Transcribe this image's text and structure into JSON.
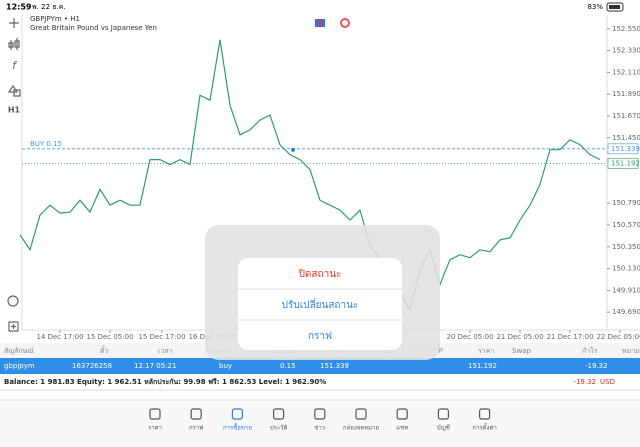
{
  "status_bar": {
    "time": "12:59",
    "date": "พ. 22 ธ.ค.",
    "battery": "83%"
  },
  "toolbar": {
    "timeframe": "H1"
  },
  "chart_data": {
    "type": "line",
    "title": "GBPJPYm • H1",
    "subtitle": "Great Britain Pound vs Japanese Yen",
    "color": "#2e9d6e",
    "values": [
      150.47,
      150.32,
      150.67,
      150.77,
      150.69,
      150.7,
      150.82,
      150.7,
      150.93,
      150.77,
      150.82,
      150.77,
      150.77,
      151.23,
      151.23,
      151.18,
      151.23,
      151.18,
      151.88,
      151.83,
      152.44,
      151.78,
      151.48,
      151.53,
      151.63,
      151.68,
      151.38,
      151.28,
      151.23,
      151.13,
      150.82,
      150.77,
      150.72,
      150.62,
      150.72,
      150.37,
      150.22,
      150.02,
      149.9,
      149.71,
      150.12,
      150.32,
      149.97,
      150.22,
      150.27,
      150.24,
      150.32,
      150.3,
      150.42,
      150.44,
      150.62,
      150.77,
      150.98,
      151.33,
      151.33,
      151.43,
      151.38,
      151.28,
      151.23
    ],
    "xlim": [
      0,
      60
    ],
    "xticks": [
      {
        "value": 4,
        "label": "14 Dec 17:00"
      },
      {
        "value": 9,
        "label": "15 Dec 05:00"
      },
      {
        "value": 14.2,
        "label": "15 Dec 17:00"
      },
      {
        "value": 19.2,
        "label": "16 Dec 05:00"
      },
      {
        "value": 45,
        "label": "20 Dec 05:00"
      },
      {
        "value": 50,
        "label": "21 Dec 05:00"
      },
      {
        "value": 55,
        "label": "21 Dec 17:00"
      },
      {
        "value": 60,
        "label": "22 Dec 05:00"
      }
    ],
    "ylim": [
      149.51,
      152.7
    ],
    "yticks": [
      {
        "value": 152.55,
        "label": "152.550"
      },
      {
        "value": 152.33,
        "label": "152.330"
      },
      {
        "value": 152.11,
        "label": "152.110"
      },
      {
        "value": 151.89,
        "label": "151.890"
      },
      {
        "value": 151.67,
        "label": "151.670"
      },
      {
        "value": 151.45,
        "label": "151.450"
      },
      {
        "value": 150.79,
        "label": "150.790"
      },
      {
        "value": 150.57,
        "label": "150.570"
      },
      {
        "value": 150.35,
        "label": "150.350"
      },
      {
        "value": 150.13,
        "label": "150.130"
      },
      {
        "value": 149.91,
        "label": "149.910"
      },
      {
        "value": 149.69,
        "label": "149.690"
      }
    ],
    "price_lines": [
      {
        "label": "BUY 0.15",
        "value": 151.339,
        "color": "#4a9ad6"
      },
      {
        "value": 151.192,
        "color": "#2e9d6e"
      }
    ]
  },
  "popup": {
    "items": [
      "ปิดสถานะ",
      "ปรับเปลี่ยนสถานะ",
      "กราฟ"
    ]
  },
  "table": {
    "columns": [
      "สัญลักษณ์",
      "ตั๋ว",
      "เวลา",
      "ประเภท",
      "Volume",
      "ราคา",
      "S/L",
      "T/P",
      "ราคา",
      "Swap",
      "กำไร",
      "หมายเหตุ"
    ],
    "rows": [
      [
        "gbpjpym",
        "163726258",
        "12.17 05:21",
        "buy",
        "0.15",
        "151.339",
        "",
        "",
        "151.192",
        "",
        "-19.32",
        ""
      ]
    ],
    "summary": "Balance: 1 981.83 Equity: 1 962.51 หลักประกัน: 99.98 ฟรี: 1 862.53 Level: 1 962.90%",
    "profit": "-19.32",
    "currency": "USD"
  },
  "tabs": [
    "ราคา",
    "กราฟ",
    "การซื้อขาย",
    "ประวัติ",
    "ข่าว",
    "กล่องจดหมาย",
    "แชท",
    "บัญชี",
    "การตั้งค่า"
  ]
}
